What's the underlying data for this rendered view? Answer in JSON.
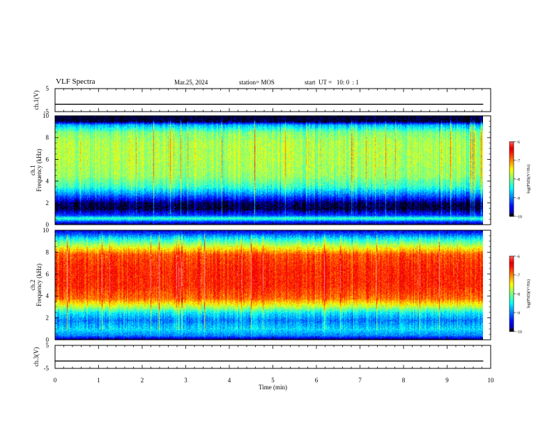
{
  "header": {
    "title": "VLF Spectra",
    "date": "Mar.25, 2024",
    "station": "station= MOS",
    "start": "start  UT =   10: 0  : 1"
  },
  "chart_data": [
    {
      "type": "line",
      "panel": "ch1-waveform",
      "ylabel": "ch.1(V)",
      "ylim": [
        -5,
        5
      ],
      "yticks": [
        5,
        -5
      ],
      "xlim": [
        0,
        10
      ],
      "series": [
        {
          "x": [
            0,
            9.83
          ],
          "values": [
            -1.8,
            -1.8
          ]
        }
      ]
    },
    {
      "type": "heatmap",
      "panel": "ch1-spectrogram",
      "ylabel": "ch.1\nFrequency (kHz)",
      "ylim": [
        0,
        10
      ],
      "yticks": [
        0,
        2,
        4,
        6,
        8,
        10
      ],
      "xlim": [
        0,
        10
      ],
      "data_xmax": 9.83,
      "colorbar": {
        "min": -10,
        "max": -6,
        "ticks": [
          -6,
          -7,
          -8,
          -9,
          -10
        ],
        "label": "log(PSD)(V²/Hz)"
      },
      "level_profile": [
        {
          "f": 0.0,
          "v": -10
        },
        {
          "f": 0.3,
          "v": -9.3
        },
        {
          "f": 0.6,
          "v": -8.2
        },
        {
          "f": 0.9,
          "v": -9.3
        },
        {
          "f": 1.5,
          "v": -10
        },
        {
          "f": 2.0,
          "v": -9.9
        },
        {
          "f": 2.8,
          "v": -9.0
        },
        {
          "f": 3.5,
          "v": -8.3
        },
        {
          "f": 4.5,
          "v": -7.9
        },
        {
          "f": 6.0,
          "v": -7.8
        },
        {
          "f": 7.5,
          "v": -7.8
        },
        {
          "f": 8.5,
          "v": -8.0
        },
        {
          "f": 9.2,
          "v": -8.8
        },
        {
          "f": 9.5,
          "v": -10
        },
        {
          "f": 10.0,
          "v": -10
        }
      ]
    },
    {
      "type": "heatmap",
      "panel": "ch2-spectrogram",
      "ylabel": "ch.2\nFrequency (kHz)",
      "ylim": [
        0,
        10
      ],
      "yticks": [
        0,
        2,
        4,
        6,
        8,
        10
      ],
      "xlim": [
        0,
        10
      ],
      "data_xmax": 9.83,
      "colorbar": {
        "min": -10,
        "max": -6,
        "ticks": [
          -6,
          -7,
          -8,
          -9,
          -10
        ],
        "label": "log(PSD)(V²/Hz)"
      },
      "level_profile": [
        {
          "f": 0.0,
          "v": -10
        },
        {
          "f": 0.4,
          "v": -9.0
        },
        {
          "f": 1.0,
          "v": -8.6
        },
        {
          "f": 1.8,
          "v": -9.0
        },
        {
          "f": 2.5,
          "v": -8.5
        },
        {
          "f": 3.0,
          "v": -7.8
        },
        {
          "f": 3.8,
          "v": -6.9
        },
        {
          "f": 5.0,
          "v": -6.6
        },
        {
          "f": 6.5,
          "v": -6.6
        },
        {
          "f": 7.8,
          "v": -6.8
        },
        {
          "f": 8.5,
          "v": -7.6
        },
        {
          "f": 9.2,
          "v": -8.4
        },
        {
          "f": 9.7,
          "v": -9.2
        },
        {
          "f": 10.0,
          "v": -9.6
        }
      ]
    },
    {
      "type": "line",
      "panel": "ch3-waveform",
      "ylabel": "ch.3(V)",
      "ylim": [
        -5,
        5
      ],
      "yticks": [
        5,
        -5
      ],
      "xlim": [
        0,
        10
      ],
      "xlabel": "Time  (min)",
      "xticks": [
        0,
        1,
        2,
        3,
        4,
        5,
        6,
        7,
        8,
        9,
        10
      ],
      "series": [
        {
          "x": [
            0,
            9.83
          ],
          "values": [
            -1.8,
            -1.8
          ]
        }
      ]
    }
  ]
}
